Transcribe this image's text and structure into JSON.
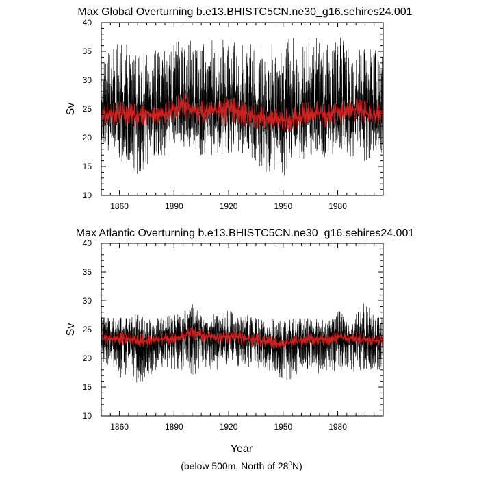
{
  "chart_data": [
    {
      "type": "line",
      "title": "Max Global Overturning b.e13.BHISTC5CN.ne30_g16.sehires24.001",
      "xlabel": "",
      "ylabel": "Sv",
      "xlim": [
        1850,
        2005
      ],
      "ylim": [
        10,
        40
      ],
      "xticks": [
        1860,
        1890,
        1920,
        1950,
        1980
      ],
      "yticks": [
        10,
        15,
        20,
        25,
        30,
        35,
        40
      ],
      "grid": false,
      "series": [
        {
          "color": "#000000",
          "x": [
            1850,
            1855,
            1860,
            1865,
            1870,
            1875,
            1880,
            1885,
            1890,
            1895,
            1900,
            1905,
            1910,
            1915,
            1920,
            1925,
            1930,
            1935,
            1940,
            1945,
            1950,
            1955,
            1960,
            1965,
            1970,
            1975,
            1980,
            1985,
            1990,
            1995,
            2000,
            2005
          ],
          "values": [
            24.5,
            24.0,
            24.8,
            23.6,
            24.2,
            25.0,
            23.5,
            24.4,
            25.2,
            25.8,
            24.6,
            24.0,
            25.0,
            24.4,
            25.4,
            24.6,
            24.0,
            23.4,
            23.0,
            23.4,
            22.8,
            23.2,
            23.8,
            24.6,
            24.4,
            24.0,
            24.8,
            24.4,
            25.0,
            24.2,
            23.8,
            24.0
          ],
          "min": [
            18.0,
            17.5,
            16.0,
            15.5,
            12.8,
            15.0,
            16.5,
            17.0,
            18.5,
            18.5,
            17.5,
            17.0,
            17.0,
            16.5,
            17.0,
            17.5,
            17.0,
            16.0,
            13.0,
            14.5,
            12.7,
            16.5,
            16.0,
            17.0,
            16.5,
            16.5,
            17.0,
            16.5,
            16.0,
            15.5,
            16.5,
            17.0
          ],
          "max": [
            33.5,
            35.0,
            37.0,
            37.5,
            35.5,
            34.5,
            35.5,
            35.0,
            36.5,
            37.0,
            37.5,
            36.0,
            37.0,
            37.5,
            37.0,
            36.5,
            36.5,
            36.0,
            37.0,
            37.5,
            36.5,
            39.3,
            36.0,
            37.0,
            37.5,
            36.0,
            37.5,
            37.0,
            36.5,
            37.0,
            35.5,
            35.0
          ]
        },
        {
          "color": "#cc2222",
          "x": [
            1850,
            1855,
            1860,
            1865,
            1870,
            1875,
            1880,
            1885,
            1890,
            1895,
            1900,
            1905,
            1910,
            1915,
            1920,
            1925,
            1930,
            1935,
            1940,
            1945,
            1950,
            1955,
            1960,
            1965,
            1970,
            1975,
            1980,
            1985,
            1990,
            1995,
            2000,
            2005
          ],
          "values": [
            24.2,
            24.0,
            24.5,
            23.8,
            24.0,
            24.6,
            23.8,
            24.2,
            25.0,
            25.6,
            24.8,
            24.2,
            24.8,
            24.4,
            25.2,
            24.8,
            24.2,
            23.6,
            23.2,
            23.4,
            23.0,
            23.2,
            23.8,
            24.4,
            24.2,
            24.0,
            24.6,
            24.4,
            24.8,
            24.2,
            23.8,
            24.0
          ],
          "min": [
            22.0,
            21.8,
            22.0,
            21.5,
            21.5,
            22.0,
            21.5,
            22.0,
            22.5,
            23.0,
            22.5,
            22.0,
            22.5,
            22.0,
            22.5,
            22.0,
            22.0,
            21.5,
            21.0,
            21.5,
            21.0,
            21.0,
            21.5,
            22.0,
            22.0,
            21.5,
            22.0,
            22.0,
            22.0,
            22.0,
            21.5,
            21.5
          ],
          "max": [
            26.5,
            26.0,
            26.5,
            26.0,
            26.0,
            26.5,
            26.0,
            26.5,
            27.0,
            28.0,
            27.0,
            26.5,
            27.0,
            26.5,
            27.5,
            27.0,
            26.5,
            26.0,
            25.5,
            25.5,
            25.0,
            25.5,
            26.0,
            26.5,
            26.5,
            26.0,
            26.5,
            26.5,
            27.0,
            26.5,
            26.0,
            26.0
          ]
        }
      ]
    },
    {
      "type": "line",
      "title": "Max Atlantic Overturning b.e13.BHISTC5CN.ne30_g16.sehires24.001",
      "xlabel": "Year",
      "ylabel": "Sv",
      "xlim": [
        1850,
        2005
      ],
      "ylim": [
        10,
        40
      ],
      "xticks": [
        1860,
        1890,
        1920,
        1950,
        1980
      ],
      "yticks": [
        10,
        15,
        20,
        25,
        30,
        35,
        40
      ],
      "grid": false,
      "series": [
        {
          "color": "#000000",
          "x": [
            1850,
            1855,
            1860,
            1865,
            1870,
            1875,
            1880,
            1885,
            1890,
            1895,
            1900,
            1905,
            1910,
            1915,
            1920,
            1925,
            1930,
            1935,
            1940,
            1945,
            1950,
            1955,
            1960,
            1965,
            1970,
            1975,
            1980,
            1985,
            1990,
            1995,
            2000,
            2005
          ],
          "values": [
            23.8,
            23.6,
            23.5,
            23.4,
            23.2,
            23.0,
            23.3,
            23.6,
            23.8,
            24.0,
            25.5,
            24.2,
            23.8,
            23.6,
            24.0,
            23.8,
            23.5,
            23.4,
            22.8,
            22.6,
            22.4,
            22.8,
            23.2,
            23.4,
            23.2,
            23.4,
            24.0,
            23.4,
            23.4,
            23.2,
            23.0,
            23.2
          ],
          "min": [
            19.0,
            18.0,
            16.5,
            17.5,
            15.5,
            16.0,
            18.0,
            18.5,
            18.0,
            17.5,
            16.5,
            18.5,
            18.0,
            18.0,
            19.0,
            18.5,
            18.5,
            18.0,
            17.5,
            18.0,
            15.5,
            16.5,
            18.0,
            17.5,
            17.0,
            18.0,
            17.5,
            18.0,
            17.5,
            18.0,
            17.5,
            18.0
          ],
          "max": [
            27.5,
            27.0,
            27.5,
            27.0,
            28.0,
            27.0,
            27.0,
            27.5,
            27.5,
            28.0,
            29.6,
            28.0,
            27.5,
            28.0,
            28.5,
            27.5,
            27.5,
            27.0,
            26.5,
            27.0,
            26.5,
            27.0,
            27.0,
            27.5,
            27.0,
            27.0,
            28.5,
            27.0,
            28.0,
            30.0,
            28.0,
            27.5
          ]
        },
        {
          "color": "#cc2222",
          "x": [
            1850,
            1855,
            1860,
            1865,
            1870,
            1875,
            1880,
            1885,
            1890,
            1895,
            1900,
            1905,
            1910,
            1915,
            1920,
            1925,
            1930,
            1935,
            1940,
            1945,
            1950,
            1955,
            1960,
            1965,
            1970,
            1975,
            1980,
            1985,
            1990,
            1995,
            2000,
            2005
          ],
          "values": [
            23.6,
            23.5,
            23.4,
            23.4,
            23.2,
            23.0,
            23.2,
            23.4,
            23.6,
            23.8,
            25.0,
            24.0,
            23.7,
            23.6,
            23.8,
            23.7,
            23.4,
            23.3,
            22.9,
            22.7,
            22.5,
            22.8,
            23.1,
            23.3,
            23.2,
            23.4,
            23.8,
            23.4,
            23.4,
            23.2,
            23.1,
            23.2
          ],
          "min": [
            22.3,
            22.2,
            22.2,
            22.2,
            22.0,
            21.8,
            22.0,
            22.2,
            22.3,
            22.5,
            23.3,
            22.7,
            22.5,
            22.4,
            22.6,
            22.5,
            22.2,
            22.1,
            21.8,
            21.6,
            21.5,
            21.7,
            22.0,
            22.2,
            22.0,
            22.2,
            22.6,
            22.2,
            22.2,
            22.1,
            22.0,
            22.0
          ],
          "max": [
            24.8,
            24.7,
            24.6,
            24.6,
            24.4,
            24.2,
            24.4,
            24.6,
            24.8,
            25.0,
            26.3,
            25.2,
            24.9,
            24.8,
            25.0,
            24.9,
            24.6,
            24.5,
            24.0,
            23.8,
            23.6,
            23.9,
            24.2,
            24.4,
            24.3,
            24.6,
            25.0,
            24.6,
            24.6,
            24.4,
            24.2,
            24.3
          ]
        }
      ]
    }
  ],
  "footnote_prefix": "(below 500m, North of 28",
  "footnote_sup": "o",
  "footnote_suffix": "N)"
}
